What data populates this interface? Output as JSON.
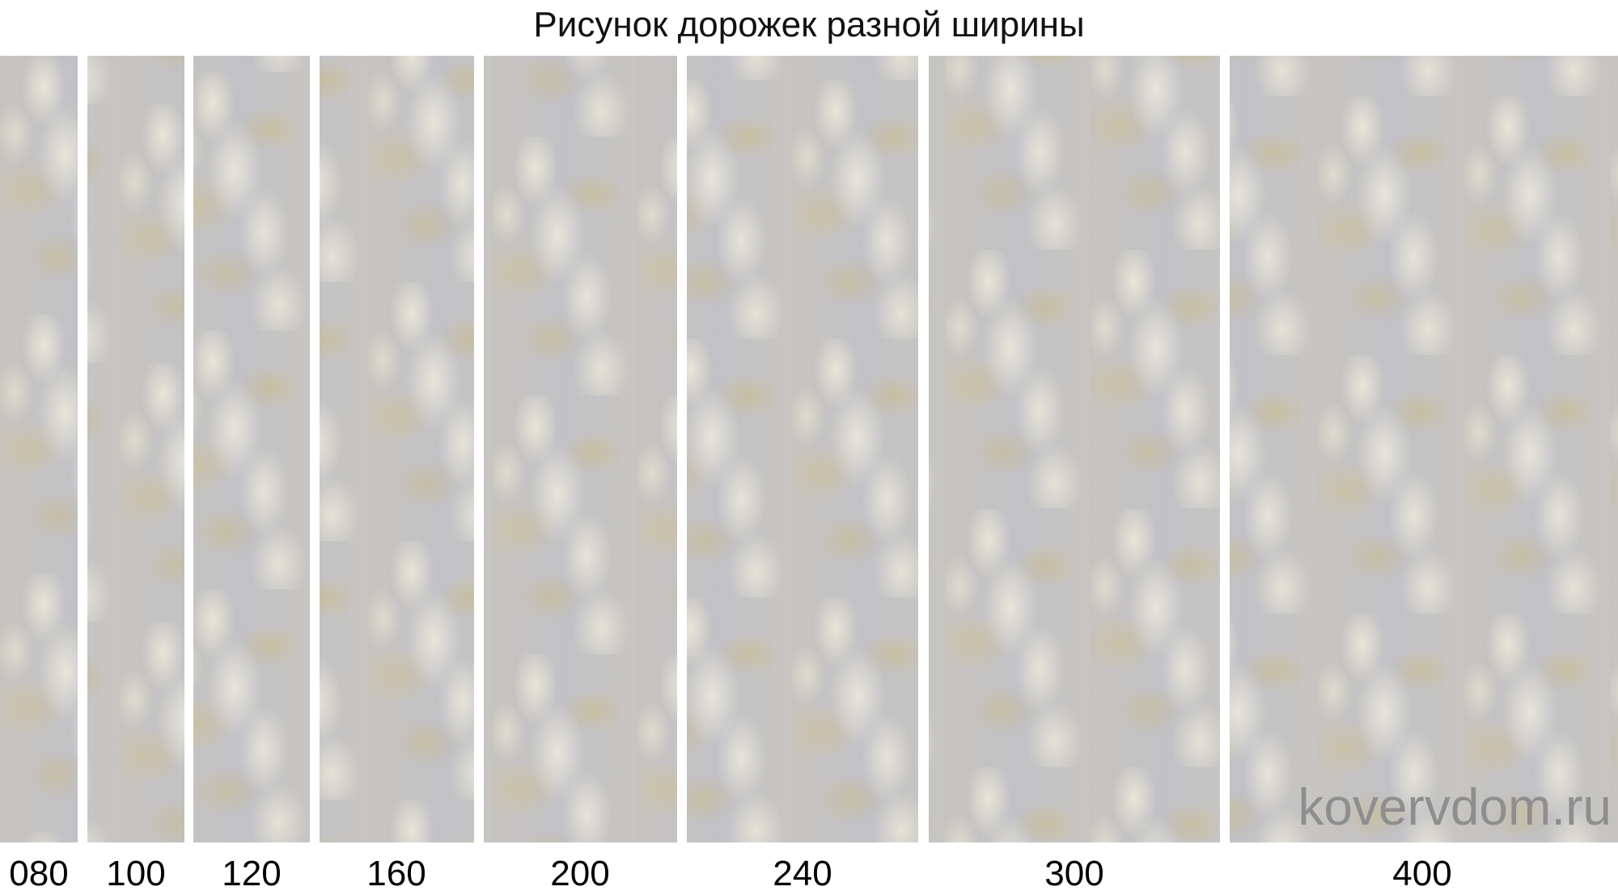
{
  "title": "Рисунок дорожек разной ширины",
  "strips": [
    {
      "label": "080"
    },
    {
      "label": "100"
    },
    {
      "label": "120"
    },
    {
      "label": "160"
    },
    {
      "label": "200"
    },
    {
      "label": "240"
    },
    {
      "label": "300"
    },
    {
      "label": "400"
    }
  ],
  "watermark": "kovervdom.ru",
  "colors": {
    "base_gray": "#c2c2c6",
    "beige": "#c9ba8c",
    "cream": "#ece9da"
  }
}
